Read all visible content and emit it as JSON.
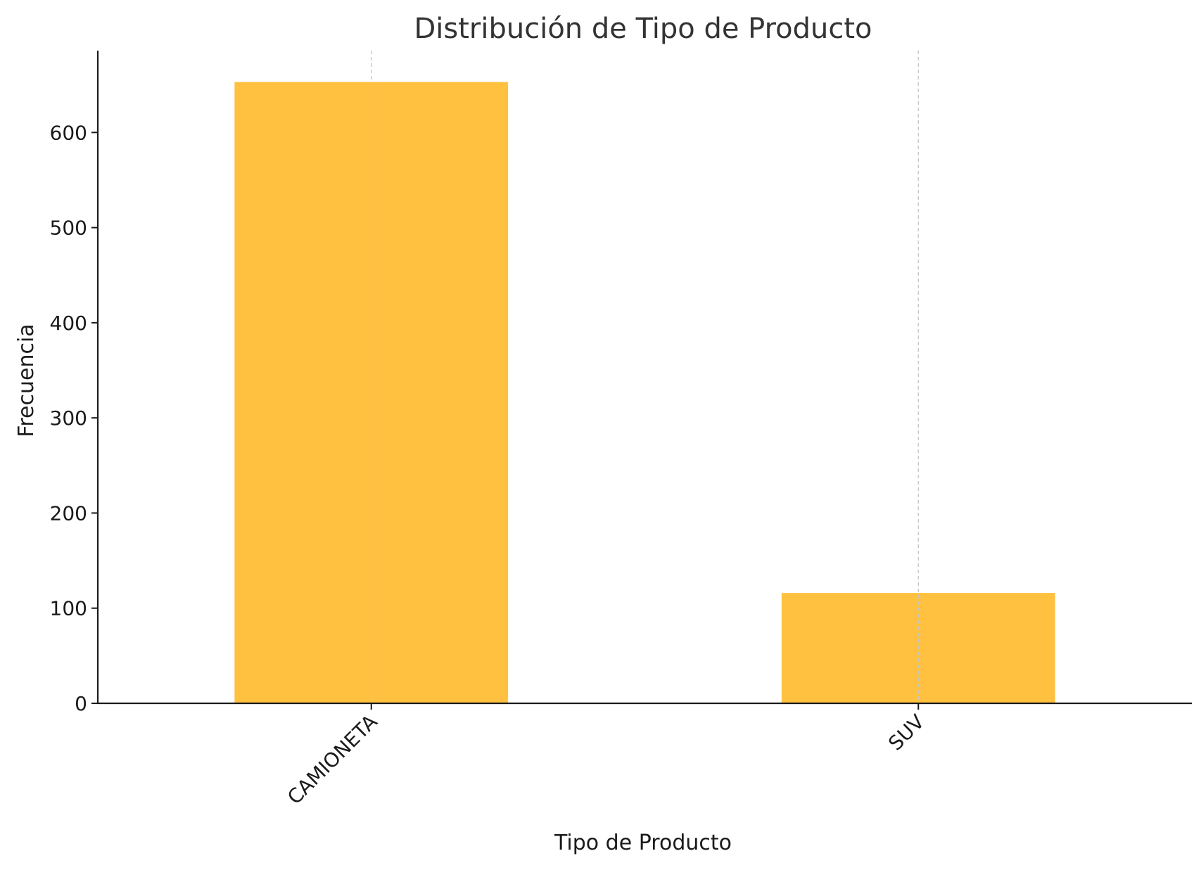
{
  "chart_data": {
    "type": "bar",
    "title": "Distribución de Tipo de Producto",
    "xlabel": "Tipo de Producto",
    "ylabel": "Frecuencia",
    "categories": [
      "CAMIONETA",
      "SUV"
    ],
    "values": [
      653,
      116
    ],
    "ylim": [
      0,
      686
    ],
    "yticks": [
      0,
      100,
      200,
      300,
      400,
      500,
      600
    ],
    "ytick_labels": [
      "0",
      "100",
      "200",
      "300",
      "400",
      "500",
      "600"
    ],
    "xtick_rotation_deg": 45,
    "grid": {
      "x": true,
      "y": false,
      "style": "dashed",
      "color": "#c8c8c8"
    },
    "bar_color": "#FFC13F",
    "axis_color": "#1a1a1a",
    "legend": "none"
  }
}
